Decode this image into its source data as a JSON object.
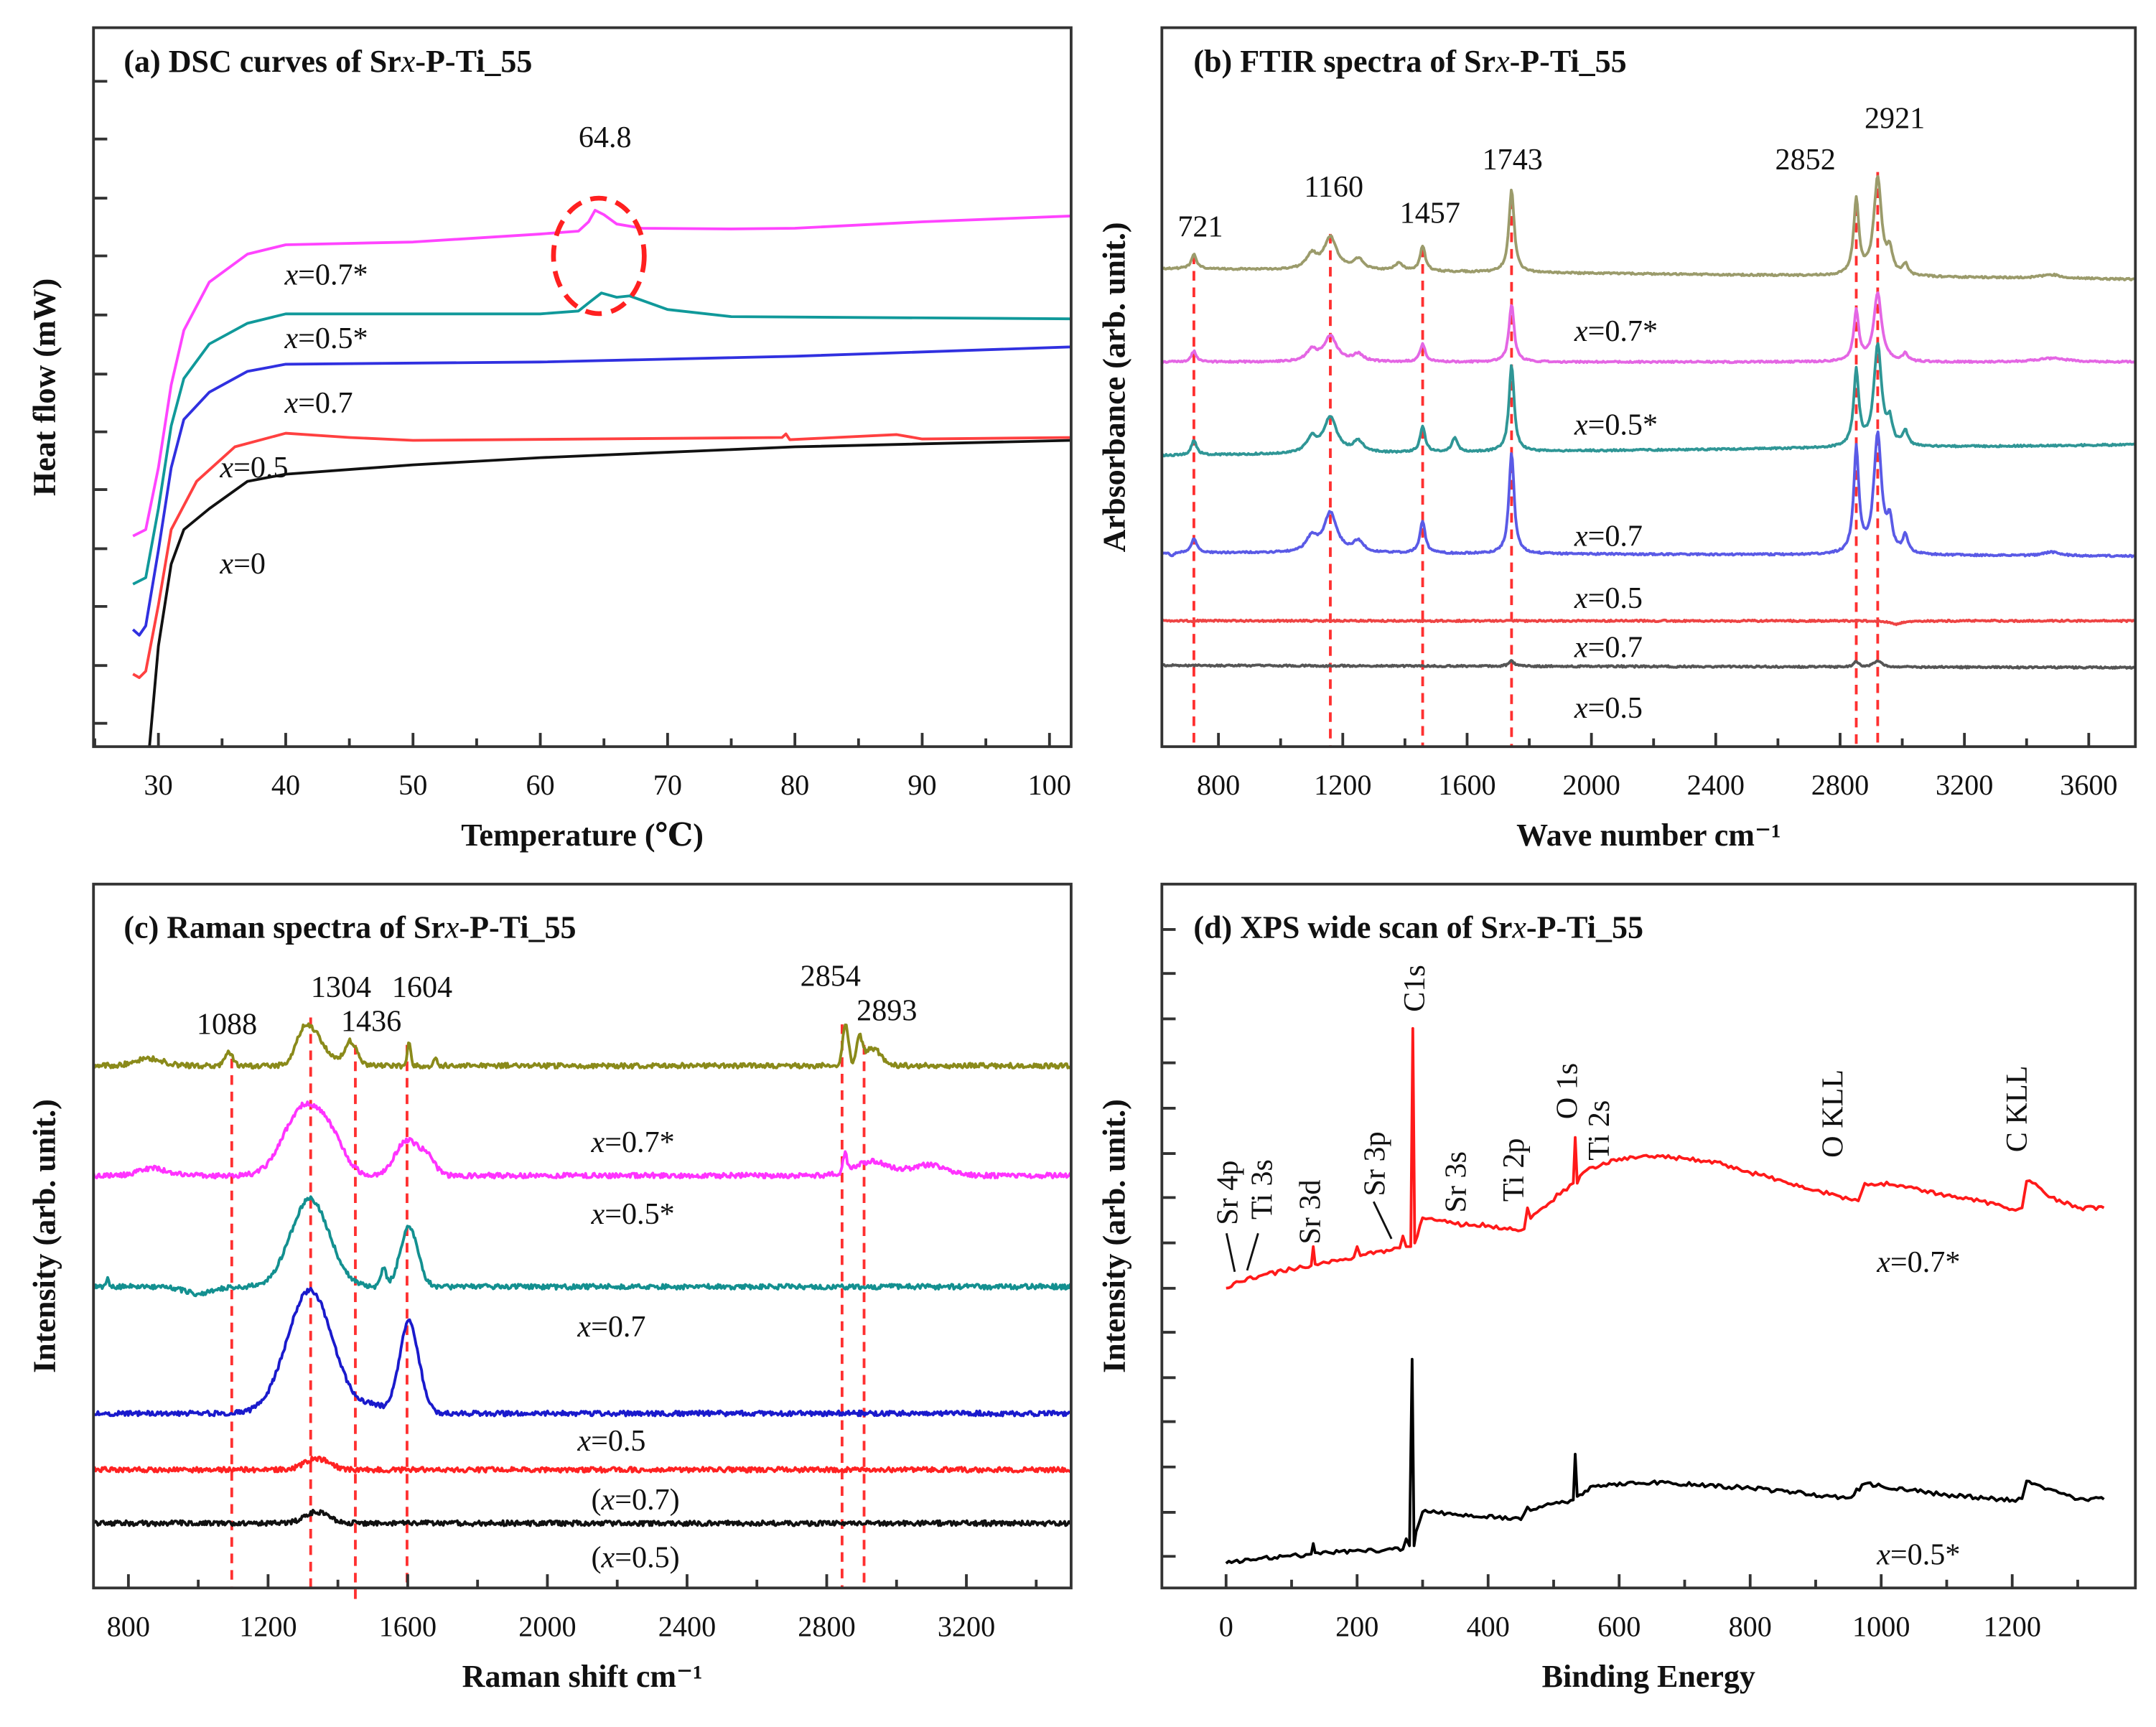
{
  "chart_data": [
    {
      "type": "line",
      "title": "(a) DSC curves of Srx-P-Ti_55",
      "xlabel": "Temperature (℃)",
      "ylabel": "Heat flow (mW)",
      "xlim": [
        24.9,
        101.7
      ],
      "ylim": [
        0,
        100
      ],
      "xticks": [
        30,
        40,
        50,
        60,
        70,
        80,
        90,
        100
      ],
      "annotations": [
        "64.8"
      ],
      "series": [
        {
          "name": "x=0.7*",
          "color": "#ff44ff",
          "x": [
            28,
            29,
            30,
            31,
            32,
            34,
            37,
            40,
            50,
            60,
            63,
            63.8,
            64.3,
            65,
            66,
            68,
            75,
            80,
            90,
            101.7
          ],
          "y": [
            29.3,
            30.2,
            38.8,
            50.3,
            57.9,
            64.6,
            68.5,
            69.8,
            70.2,
            71.3,
            71.7,
            73,
            74.6,
            74,
            72.7,
            72.1,
            72,
            72.1,
            73,
            73.8
          ]
        },
        {
          "name": "x=0.5*",
          "color": "#10999a",
          "x": [
            28,
            29,
            30,
            31,
            32,
            34,
            37,
            40,
            60,
            63,
            64,
            64.8,
            66,
            67,
            70,
            75,
            101.7
          ],
          "y": [
            22.6,
            23.5,
            33.1,
            44.6,
            51.2,
            56,
            58.9,
            60.2,
            60.2,
            60.6,
            62,
            63.1,
            62.5,
            62.7,
            60.8,
            59.8,
            59.5
          ]
        },
        {
          "name": "x=0.7",
          "color": "#3030e0",
          "x": [
            28,
            28.5,
            29,
            30,
            31,
            32,
            34,
            37,
            40,
            60,
            80,
            101.7
          ],
          "y": [
            16.3,
            15.5,
            16.8,
            27.3,
            38.8,
            45.5,
            49.3,
            52.2,
            53.2,
            53.5,
            54.3,
            55.6
          ]
        },
        {
          "name": "x=0.5",
          "color": "#ff4040",
          "x": [
            28,
            28.5,
            29,
            30,
            31,
            33,
            36,
            40,
            45,
            50,
            79,
            79.3,
            79.6,
            88,
            90,
            101.7
          ],
          "y": [
            10.1,
            9.6,
            10.5,
            19.7,
            30.2,
            36.9,
            41.7,
            43.6,
            43,
            42.6,
            43,
            43.5,
            42.7,
            43.4,
            42.8,
            43
          ]
        },
        {
          "name": "x=0",
          "color": "#111111",
          "x": [
            29.3,
            30,
            31,
            32,
            34,
            37,
            40,
            50,
            60,
            80,
            101.7
          ],
          "y": [
            0,
            14,
            25.4,
            30.2,
            33.1,
            36.9,
            37.9,
            39.2,
            40.2,
            41.7,
            42.6
          ]
        }
      ]
    },
    {
      "type": "line",
      "title": "(b) FTIR spectra of Srx-P-Ti_55",
      "xlabel": "Wave number cm⁻¹",
      "ylabel": "Arbsorbance (arb. unit.)",
      "xlim": [
        618,
        3750
      ],
      "ylim": [
        0,
        100
      ],
      "xticks": [
        800,
        1200,
        1600,
        2000,
        2400,
        2800,
        3200,
        3600
      ],
      "annotations": [
        "721",
        "1160",
        "1457",
        "1743",
        "2852",
        "2921"
      ],
      "peak_lines": [
        721,
        1160,
        1457,
        1743,
        2852,
        2921
      ],
      "series": [
        {
          "name": "x=0.7*",
          "color": "#9b9b6b",
          "base": [
            66.5,
            65
          ],
          "peaks": [
            [
              721,
              2,
              10
            ],
            [
              1100,
              2,
              20
            ],
            [
              1160,
              4.5,
              25
            ],
            [
              1250,
              1.5,
              20
            ],
            [
              1380,
              1,
              15
            ],
            [
              1457,
              3.5,
              10
            ],
            [
              1743,
              11.5,
              10
            ],
            [
              2852,
              10.5,
              10
            ],
            [
              2921,
              13.5,
              15
            ],
            [
              2960,
              3,
              10
            ],
            [
              3010,
              1.5,
              10
            ],
            [
              3480,
              0.5,
              40
            ]
          ]
        },
        {
          "name": "x=0.5*",
          "color": "#e466e4",
          "base": [
            53.5,
            53.5
          ],
          "peaks": [
            [
              721,
              1.5,
              10
            ],
            [
              1100,
              1.5,
              20
            ],
            [
              1160,
              3.5,
              25
            ],
            [
              1250,
              1,
              20
            ],
            [
              1457,
              2.5,
              10
            ],
            [
              1743,
              8,
              10
            ],
            [
              2852,
              7,
              10
            ],
            [
              2921,
              9.5,
              15
            ],
            [
              3010,
              1,
              10
            ],
            [
              3480,
              0.5,
              60
            ]
          ]
        },
        {
          "name": "x=0.7",
          "color": "#2f9696",
          "base": [
            40.5,
            42
          ],
          "peaks": [
            [
              721,
              2,
              10
            ],
            [
              1100,
              2,
              20
            ],
            [
              1160,
              5,
              25
            ],
            [
              1250,
              1.5,
              20
            ],
            [
              1457,
              3.5,
              10
            ],
            [
              1560,
              2,
              10
            ],
            [
              1743,
              12,
              10
            ],
            [
              2852,
              10.5,
              10
            ],
            [
              2921,
              14,
              15
            ],
            [
              2960,
              3,
              10
            ],
            [
              3010,
              2,
              10
            ]
          ]
        },
        {
          "name": "x=0.5",
          "color": "#5a5ae6",
          "base": [
            27,
            26.5
          ],
          "peaks": [
            [
              650,
              -0.5,
              10
            ],
            [
              721,
              2,
              10
            ],
            [
              1100,
              2,
              20
            ],
            [
              1160,
              5.5,
              25
            ],
            [
              1250,
              1.5,
              20
            ],
            [
              1457,
              4.5,
              10
            ],
            [
              1743,
              14,
              10
            ],
            [
              2852,
              14.5,
              10
            ],
            [
              2921,
              16.5,
              15
            ],
            [
              2960,
              4,
              10
            ],
            [
              3010,
              2.5,
              10
            ],
            [
              3480,
              0.5,
              30
            ]
          ]
        },
        {
          "name": "x=0.7",
          "color": "#ee4444",
          "base": [
            17.5,
            17.5
          ],
          "peaks": [
            [
              2980,
              -0.5,
              20
            ]
          ]
        },
        {
          "name": "x=0.5",
          "color": "#555555",
          "base": [
            11.3,
            11
          ],
          "peaks": [
            [
              1743,
              0.7,
              10
            ],
            [
              2852,
              0.7,
              10
            ],
            [
              2921,
              0.9,
              15
            ]
          ]
        }
      ]
    },
    {
      "type": "line",
      "title": "(c) Raman spectra of Srx-P-Ti_55",
      "xlabel": "Raman shift cm⁻¹",
      "ylabel": "Intensity (arb. unit.)",
      "xlim": [
        700,
        3500
      ],
      "ylim": [
        0,
        100
      ],
      "xticks": [
        800,
        1200,
        1600,
        2000,
        2400,
        2800,
        3200
      ],
      "annotations": [
        "1088",
        "1304",
        "1436",
        "1604",
        "2854",
        "2893"
      ],
      "peak_lines": [
        1096,
        1322,
        1450,
        1598,
        2844,
        2907
      ],
      "series": [
        {
          "name": "x=0.7*",
          "color": "#8a8a1a",
          "base": [
            74.2,
            74.2
          ],
          "peaks": [
            [
              860,
              1,
              40
            ],
            [
              1088,
              2,
              10
            ],
            [
              1304,
              4.5,
              25
            ],
            [
              1345,
              3,
              30
            ],
            [
              1436,
              3.5,
              18
            ],
            [
              1604,
              3.5,
              5
            ],
            [
              1680,
              1,
              5
            ],
            [
              2854,
              6,
              8
            ],
            [
              2893,
              3.5,
              8
            ],
            [
              2930,
              2.5,
              25
            ]
          ]
        },
        {
          "name": "x=0.5*",
          "color": "#ff33ff",
          "base": [
            58.6,
            58.6
          ],
          "peaks": [
            [
              870,
              1,
              40
            ],
            [
              1300,
              9.5,
              55
            ],
            [
              1380,
              4,
              40
            ],
            [
              1600,
              5,
              35
            ],
            [
              1660,
              2,
              20
            ],
            [
              2852,
              2.5,
              6
            ],
            [
              2930,
              2,
              50
            ],
            [
              3090,
              1.5,
              50
            ]
          ]
        },
        {
          "name": "x=0.7",
          "color": "#139090",
          "base": [
            42.8,
            42.8
          ],
          "peaks": [
            [
              740,
              1.5,
              3
            ],
            [
              1000,
              -1,
              40
            ],
            [
              1320,
              12.5,
              55
            ],
            [
              1530,
              2.5,
              8
            ],
            [
              1604,
              8.5,
              25
            ]
          ]
        },
        {
          "name": "x=0.5",
          "color": "#1a1acc",
          "base": [
            24.8,
            24.8
          ],
          "peaks": [
            [
              1320,
              17.5,
              65
            ],
            [
              1500,
              1,
              30
            ],
            [
              1604,
              13,
              28
            ]
          ]
        },
        {
          "name": "(x=0.7)",
          "color": "#ff2222",
          "base": [
            16.8,
            16.8
          ],
          "peaks": [
            [
              1340,
              1.6,
              35
            ]
          ]
        },
        {
          "name": "(x=0.5)",
          "color": "#111111",
          "base": [
            9.2,
            9.2
          ],
          "peaks": [
            [
              1340,
              1.6,
              35
            ]
          ]
        }
      ]
    },
    {
      "type": "line",
      "title": "(d) XPS wide scan of Srx-P-Ti_55",
      "xlabel": "Binding Energy",
      "ylabel": "Intensity (arb. unit.)",
      "xlim": [
        -98,
        1388
      ],
      "ylim": [
        0,
        100
      ],
      "xticks": [
        0,
        200,
        400,
        600,
        800,
        1000,
        1200
      ],
      "annotations": [
        "Sr 4p",
        "Ti 3s",
        "Sr 3d",
        "Sr 3p",
        "C1s",
        "Sr 3s",
        "Ti 2p",
        "O 1s",
        "Ti 2s",
        "O KLL",
        "C KLL"
      ],
      "series": [
        {
          "name": "x=0.7*",
          "color": "#ff1a1a",
          "x": [
            0,
            20,
            50,
            100,
            130,
            133,
            136,
            195,
            200,
            205,
            265,
            270,
            275,
            282,
            285,
            288,
            292,
            300,
            310,
            350,
            400,
            450,
            455,
            460,
            465,
            480,
            500,
            505,
            520,
            530,
            533,
            536,
            545,
            560,
            600,
            650,
            700,
            750,
            800,
            850,
            900,
            950,
            965,
            975,
            990,
            1000,
            1050,
            1100,
            1150,
            1200,
            1215,
            1222,
            1240,
            1260,
            1300,
            1340
          ],
          "y": [
            42.6,
            43.5,
            44.3,
            45.3,
            45.8,
            48.5,
            46,
            47,
            48.5,
            47.2,
            48.3,
            50,
            48.5,
            48.5,
            79.5,
            49,
            50,
            52.6,
            52.5,
            51.7,
            51.5,
            50.8,
            51,
            54,
            52.5,
            53.8,
            55,
            56,
            56.5,
            57.5,
            64,
            57.5,
            59,
            59.8,
            61,
            61.3,
            61,
            60.5,
            59,
            57.8,
            56.5,
            55.3,
            55,
            57.5,
            57.2,
            57.5,
            56.8,
            55.8,
            55,
            53.8,
            54,
            57.8,
            57,
            55.5,
            54,
            54
          ]
        },
        {
          "name": "x=0.5*",
          "color": "#000000",
          "x": [
            0,
            50,
            130,
            133,
            136,
            270,
            275,
            280,
            284,
            287,
            290,
            300,
            350,
            450,
            460,
            465,
            500,
            530,
            533,
            536,
            560,
            650,
            800,
            950,
            975,
            1000,
            1100,
            1200,
            1215,
            1222,
            1250,
            1300,
            1340
          ],
          "y": [
            3.5,
            4.2,
            4.8,
            6.3,
            5,
            5.5,
            7,
            6,
            32.5,
            6,
            8,
            10.8,
            10.5,
            9.7,
            11.5,
            11,
            12,
            12.5,
            19,
            13,
            14.5,
            15,
            14.2,
            12.8,
            14.8,
            14.5,
            13.2,
            12.5,
            12.7,
            15.2,
            14,
            12.6,
            12.6
          ]
        }
      ]
    }
  ]
}
